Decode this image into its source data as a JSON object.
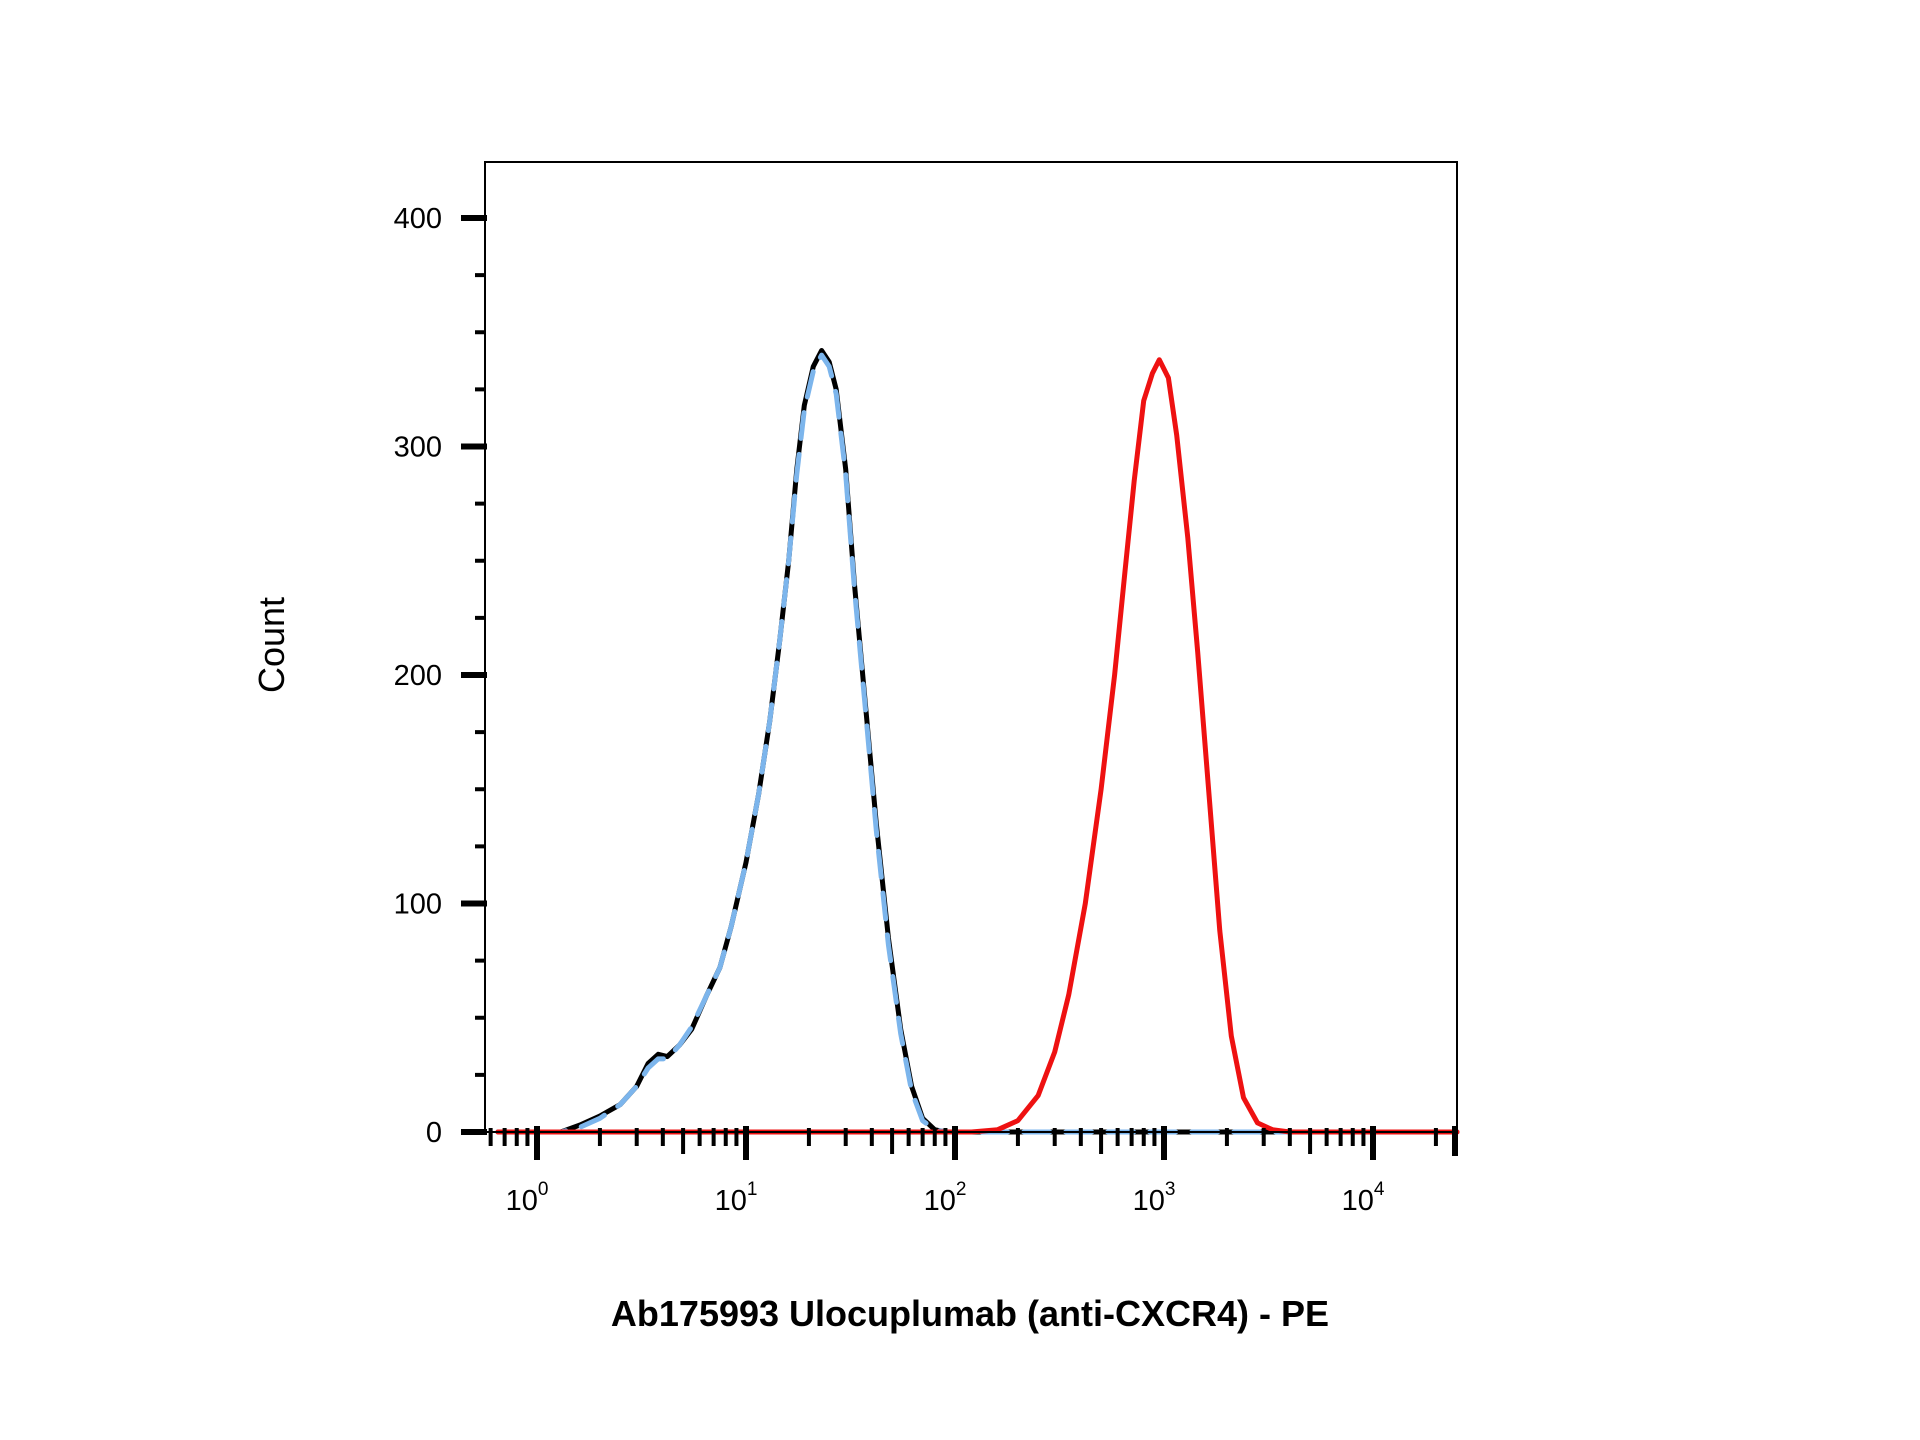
{
  "chart_data": {
    "type": "line",
    "title": "",
    "xlabel": "Ab175993 Ulocuplumab (anti-CXCR4) - PE",
    "ylabel": "Count",
    "x_scale": "log",
    "xlim": [
      0.65,
      40000
    ],
    "ylim": [
      0,
      420
    ],
    "grid": false,
    "legend": "none",
    "y_ticks": [
      {
        "value": 0,
        "label": "0"
      },
      {
        "value": 100,
        "label": "100"
      },
      {
        "value": 200,
        "label": "200"
      },
      {
        "value": 300,
        "label": "300"
      },
      {
        "value": 400,
        "label": "400"
      }
    ],
    "x_ticks": [
      {
        "value": 1,
        "base": "10",
        "exp": "0"
      },
      {
        "value": 10,
        "base": "10",
        "exp": "1"
      },
      {
        "value": 100,
        "base": "10",
        "exp": "2"
      },
      {
        "value": 1000,
        "base": "10",
        "exp": "3"
      },
      {
        "value": 10000,
        "base": "10",
        "exp": "4"
      }
    ],
    "series": [
      {
        "color": "#000000",
        "dash": "solid",
        "points": [
          [
            0.65,
            0
          ],
          [
            1.3,
            0
          ],
          [
            1.6,
            3
          ],
          [
            2.0,
            7
          ],
          [
            2.5,
            12
          ],
          [
            3.0,
            20
          ],
          [
            3.4,
            30
          ],
          [
            3.8,
            34
          ],
          [
            4.2,
            33
          ],
          [
            4.8,
            38
          ],
          [
            5.5,
            45
          ],
          [
            6.5,
            60
          ],
          [
            7.5,
            72
          ],
          [
            8.5,
            90
          ],
          [
            10,
            118
          ],
          [
            11.5,
            148
          ],
          [
            13,
            180
          ],
          [
            14.5,
            215
          ],
          [
            16,
            250
          ],
          [
            17.5,
            290
          ],
          [
            19,
            318
          ],
          [
            21,
            335
          ],
          [
            23,
            342
          ],
          [
            25,
            337
          ],
          [
            27,
            325
          ],
          [
            30,
            290
          ],
          [
            33,
            240
          ],
          [
            37,
            190
          ],
          [
            42,
            135
          ],
          [
            48,
            85
          ],
          [
            55,
            45
          ],
          [
            62,
            20
          ],
          [
            70,
            6
          ],
          [
            80,
            1
          ],
          [
            90,
            0
          ],
          [
            40000,
            0
          ]
        ]
      },
      {
        "color": "#7cb5ec",
        "dash": "dashed",
        "points": [
          [
            0.65,
            0
          ],
          [
            1.3,
            0
          ],
          [
            1.6,
            2
          ],
          [
            2.0,
            6
          ],
          [
            2.5,
            12
          ],
          [
            3.0,
            20
          ],
          [
            3.4,
            28
          ],
          [
            3.8,
            32
          ],
          [
            4.2,
            32
          ],
          [
            4.8,
            38
          ],
          [
            5.5,
            46
          ],
          [
            6.5,
            60
          ],
          [
            7.5,
            72
          ],
          [
            8.5,
            90
          ],
          [
            10,
            118
          ],
          [
            11.5,
            148
          ],
          [
            13,
            180
          ],
          [
            14.5,
            215
          ],
          [
            16,
            250
          ],
          [
            17.5,
            288
          ],
          [
            19,
            316
          ],
          [
            21,
            333
          ],
          [
            23,
            340
          ],
          [
            25,
            335
          ],
          [
            27,
            323
          ],
          [
            30,
            288
          ],
          [
            33,
            238
          ],
          [
            37,
            188
          ],
          [
            42,
            132
          ],
          [
            48,
            82
          ],
          [
            55,
            43
          ],
          [
            62,
            18
          ],
          [
            70,
            5
          ],
          [
            80,
            1
          ],
          [
            90,
            0
          ],
          [
            40000,
            0
          ]
        ]
      },
      {
        "color": "#ee1111",
        "dash": "solid",
        "points": [
          [
            0.65,
            0
          ],
          [
            120,
            0
          ],
          [
            160,
            1
          ],
          [
            200,
            5
          ],
          [
            250,
            16
          ],
          [
            300,
            35
          ],
          [
            350,
            60
          ],
          [
            420,
            100
          ],
          [
            500,
            150
          ],
          [
            580,
            200
          ],
          [
            650,
            245
          ],
          [
            720,
            285
          ],
          [
            800,
            320
          ],
          [
            880,
            332
          ],
          [
            950,
            338
          ],
          [
            1050,
            330
          ],
          [
            1150,
            305
          ],
          [
            1300,
            260
          ],
          [
            1450,
            210
          ],
          [
            1650,
            145
          ],
          [
            1850,
            88
          ],
          [
            2100,
            42
          ],
          [
            2400,
            15
          ],
          [
            2800,
            4
          ],
          [
            3300,
            1
          ],
          [
            4000,
            0
          ],
          [
            40000,
            0
          ]
        ]
      }
    ]
  }
}
